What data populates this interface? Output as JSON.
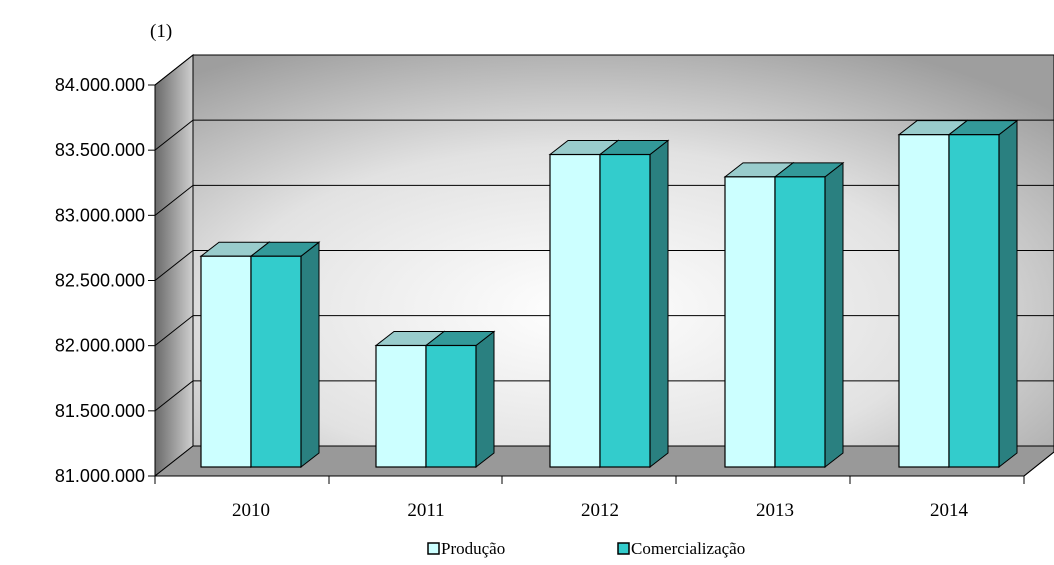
{
  "chart_data": {
    "type": "bar",
    "title": "",
    "unit_note": "(1)",
    "xlabel": "",
    "ylabel": "",
    "categories": [
      "2010",
      "2011",
      "2012",
      "2013",
      "2014"
    ],
    "series": [
      {
        "name": "Produção",
        "values": [
          82700000,
          81980000,
          83520000,
          83340000,
          83680000
        ]
      },
      {
        "name": "Comercialização",
        "values": [
          82700000,
          81980000,
          83520000,
          83340000,
          83680000
        ]
      }
    ],
    "ylim": [
      81000000,
      84000000
    ],
    "yticks": [
      {
        "value": 81000000,
        "label": "81.000.000"
      },
      {
        "value": 81500000,
        "label": "81.500.000"
      },
      {
        "value": 82000000,
        "label": "82.000.000"
      },
      {
        "value": 82500000,
        "label": "82.500.000"
      },
      {
        "value": 83000000,
        "label": "83.000.000"
      },
      {
        "value": 83500000,
        "label": "83.500.000"
      },
      {
        "value": 84000000,
        "label": "84.000.000"
      }
    ],
    "grid": true,
    "legend_position": "bottom",
    "colors": {
      "series_front": [
        "#ccffff",
        "#33cccc"
      ],
      "series_top": [
        "#99cccc",
        "#339999"
      ],
      "series_side": [
        "#66aaaa",
        "#2a8080"
      ],
      "floor": "#999999",
      "wall_edge": "#6f6f6f"
    }
  }
}
